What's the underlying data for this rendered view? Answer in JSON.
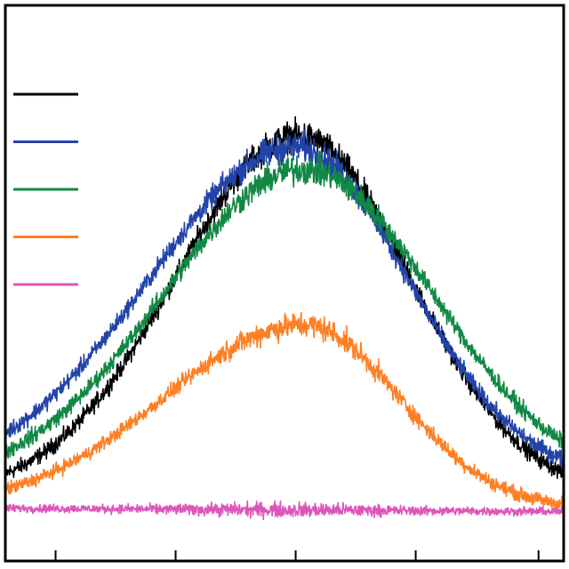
{
  "chart_data": {
    "type": "line",
    "title": "",
    "xlabel": "",
    "ylabel": "",
    "xlim": [
      0,
      100
    ],
    "ylim": [
      0,
      100
    ],
    "xticks": [
      9,
      30.5,
      52,
      73.5,
      95.5
    ],
    "grid": false,
    "legend": {
      "placement": "top-left",
      "labels_visible": false
    },
    "series": [
      {
        "color": "#000000",
        "peak_x": 52.5,
        "peak_y": 76.5,
        "width_left": 22,
        "width_right": 20,
        "baseline": 12,
        "noise": 1.8,
        "x": [
          0,
          10,
          20,
          30,
          40,
          45,
          50,
          52.5,
          55,
          60,
          70,
          80,
          90,
          100
        ],
        "values": [
          22,
          30,
          37,
          47,
          62,
          70,
          75,
          76.5,
          75,
          67,
          49,
          30,
          17,
          14
        ]
      },
      {
        "color": "#2244aa",
        "peak_x": 52,
        "peak_y": 74.5,
        "width_left": 26,
        "width_right": 20,
        "baseline": 15,
        "noise": 1.8,
        "x": [
          0,
          10,
          20,
          30,
          40,
          45,
          50,
          52,
          55,
          60,
          70,
          80,
          90,
          100
        ],
        "values": [
          24,
          33,
          41,
          50,
          63,
          69,
          73,
          74.5,
          73,
          66,
          50,
          33,
          22,
          17
        ]
      },
      {
        "color": "#118844",
        "peak_x": 53.5,
        "peak_y": 70.5,
        "width_left": 25,
        "width_right": 23,
        "baseline": 14,
        "noise": 1.8,
        "x": [
          0,
          10,
          20,
          30,
          40,
          45,
          50,
          53.5,
          55,
          60,
          70,
          80,
          90,
          100
        ],
        "values": [
          18,
          31,
          39,
          49,
          61,
          66,
          70,
          70.5,
          70,
          66,
          54,
          39,
          26,
          17
        ]
      },
      {
        "color": "#ff7f24",
        "peak_x": 53.5,
        "peak_y": 42.5,
        "width_left": 25,
        "width_right": 17,
        "baseline": 9.5,
        "noise": 1.5,
        "x": [
          0,
          10,
          20,
          30,
          40,
          45,
          50,
          53.5,
          55,
          60,
          70,
          80,
          90,
          100
        ],
        "values": [
          15,
          19,
          23,
          28,
          35,
          39,
          42,
          42.5,
          42,
          38,
          28,
          19,
          13,
          12
        ]
      },
      {
        "color": "#dd55bb",
        "peak_x": 50,
        "peak_y": 9.2,
        "width_left": 50,
        "width_right": 50,
        "baseline": 9.2,
        "noise": 0.9,
        "x": [
          0,
          25,
          50,
          75,
          100
        ],
        "values": [
          9.5,
          9.3,
          9.2,
          9.1,
          8.8
        ]
      }
    ]
  }
}
